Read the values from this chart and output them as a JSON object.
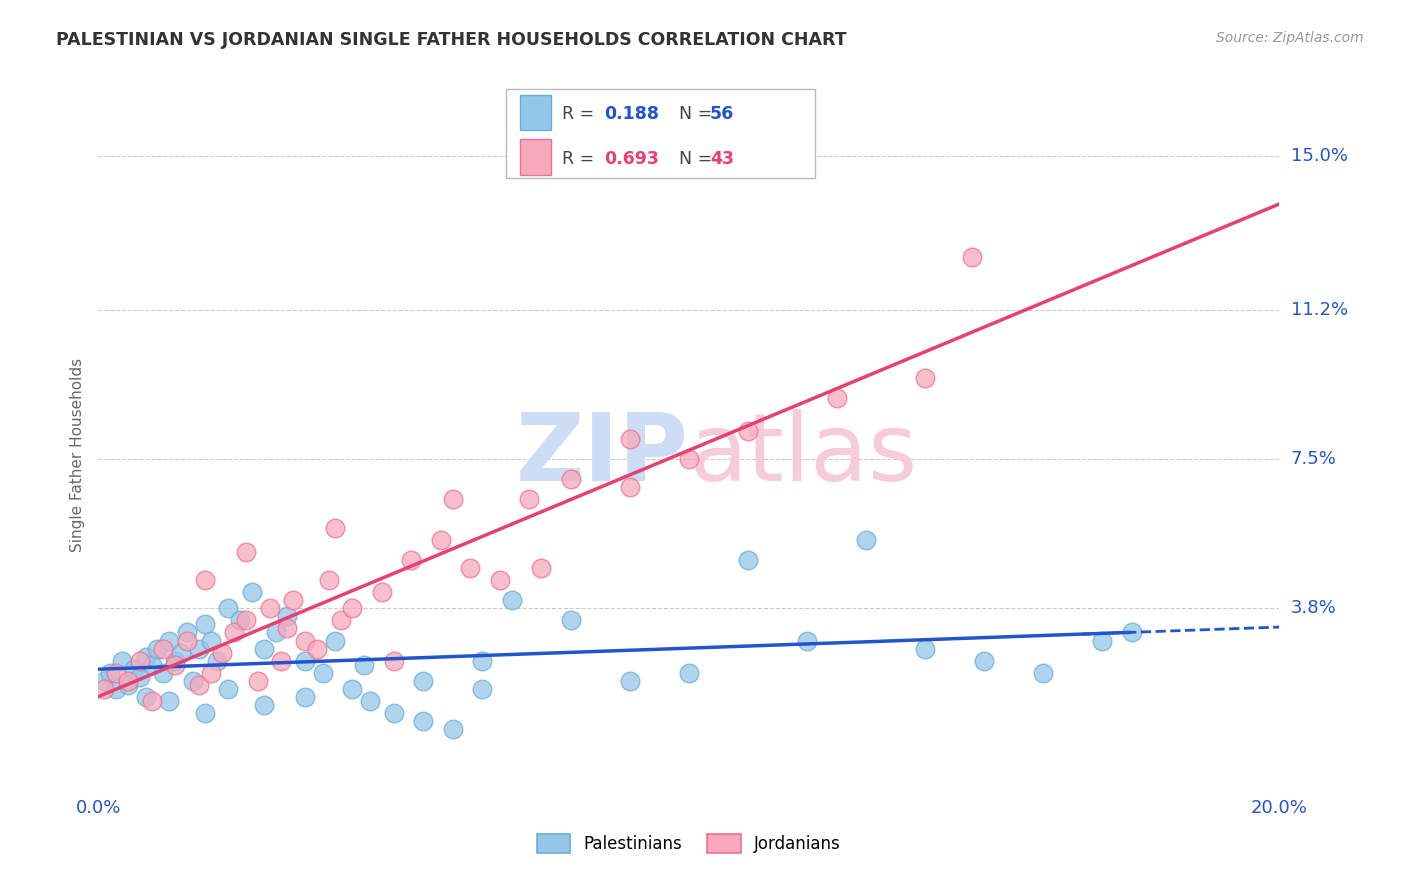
{
  "title": "PALESTINIAN VS JORDANIAN SINGLE FATHER HOUSEHOLDS CORRELATION CHART",
  "source": "Source: ZipAtlas.com",
  "ylabel": "Single Father Households",
  "xmin": 0.0,
  "xmax": 0.2,
  "ymin": -0.008,
  "ymax": 0.16,
  "ytick_vals": [
    0.038,
    0.075,
    0.112,
    0.15
  ],
  "ytick_labels": [
    "3.8%",
    "7.5%",
    "11.2%",
    "15.0%"
  ],
  "xtick_vals": [
    0.0,
    0.04,
    0.08,
    0.12,
    0.16,
    0.2
  ],
  "xtick_labels": [
    "0.0%",
    "",
    "",
    "",
    "",
    "20.0%"
  ],
  "palestinian_color": "#94c6e8",
  "jordanian_color": "#f7a8bc",
  "palestinian_edge": "#6aaed6",
  "jordanian_edge": "#f07090",
  "trendline_blue": "#2255cc",
  "trendline_pink": "#e84070",
  "grid_color": "#cccccc",
  "watermark_zip_color": "#ccddf5",
  "watermark_atlas_color": "#f5ccd8",
  "palestinians_label": "Palestinians",
  "jordanians_label": "Jordanians",
  "legend_R1": "0.188",
  "legend_N1": "56",
  "legend_R2": "0.693",
  "legend_N2": "43",
  "pal_x": [
    0.001,
    0.002,
    0.003,
    0.004,
    0.005,
    0.006,
    0.007,
    0.008,
    0.009,
    0.01,
    0.011,
    0.012,
    0.013,
    0.014,
    0.015,
    0.016,
    0.017,
    0.018,
    0.019,
    0.02,
    0.022,
    0.024,
    0.026,
    0.028,
    0.03,
    0.032,
    0.035,
    0.038,
    0.04,
    0.043,
    0.046,
    0.05,
    0.055,
    0.06,
    0.065,
    0.07,
    0.08,
    0.09,
    0.1,
    0.11,
    0.12,
    0.13,
    0.14,
    0.15,
    0.16,
    0.17,
    0.008,
    0.012,
    0.018,
    0.022,
    0.028,
    0.035,
    0.045,
    0.055,
    0.065,
    0.175
  ],
  "pal_y": [
    0.02,
    0.022,
    0.018,
    0.025,
    0.019,
    0.023,
    0.021,
    0.026,
    0.024,
    0.028,
    0.022,
    0.03,
    0.025,
    0.027,
    0.032,
    0.02,
    0.028,
    0.034,
    0.03,
    0.025,
    0.038,
    0.035,
    0.042,
    0.028,
    0.032,
    0.036,
    0.025,
    0.022,
    0.03,
    0.018,
    0.015,
    0.012,
    0.01,
    0.008,
    0.025,
    0.04,
    0.035,
    0.02,
    0.022,
    0.05,
    0.03,
    0.055,
    0.028,
    0.025,
    0.022,
    0.03,
    0.016,
    0.015,
    0.012,
    0.018,
    0.014,
    0.016,
    0.024,
    0.02,
    0.018,
    0.032
  ],
  "jor_x": [
    0.001,
    0.003,
    0.005,
    0.007,
    0.009,
    0.011,
    0.013,
    0.015,
    0.017,
    0.019,
    0.021,
    0.023,
    0.025,
    0.027,
    0.029,
    0.031,
    0.033,
    0.035,
    0.037,
    0.039,
    0.041,
    0.043,
    0.048,
    0.053,
    0.058,
    0.063,
    0.068,
    0.073,
    0.08,
    0.09,
    0.1,
    0.11,
    0.125,
    0.14,
    0.018,
    0.025,
    0.032,
    0.04,
    0.05,
    0.06,
    0.075,
    0.09,
    0.148
  ],
  "jor_y": [
    0.018,
    0.022,
    0.02,
    0.025,
    0.015,
    0.028,
    0.024,
    0.03,
    0.019,
    0.022,
    0.027,
    0.032,
    0.035,
    0.02,
    0.038,
    0.025,
    0.04,
    0.03,
    0.028,
    0.045,
    0.035,
    0.038,
    0.042,
    0.05,
    0.055,
    0.048,
    0.045,
    0.065,
    0.07,
    0.068,
    0.075,
    0.082,
    0.09,
    0.095,
    0.045,
    0.052,
    0.033,
    0.058,
    0.025,
    0.065,
    0.048,
    0.08,
    0.125
  ]
}
